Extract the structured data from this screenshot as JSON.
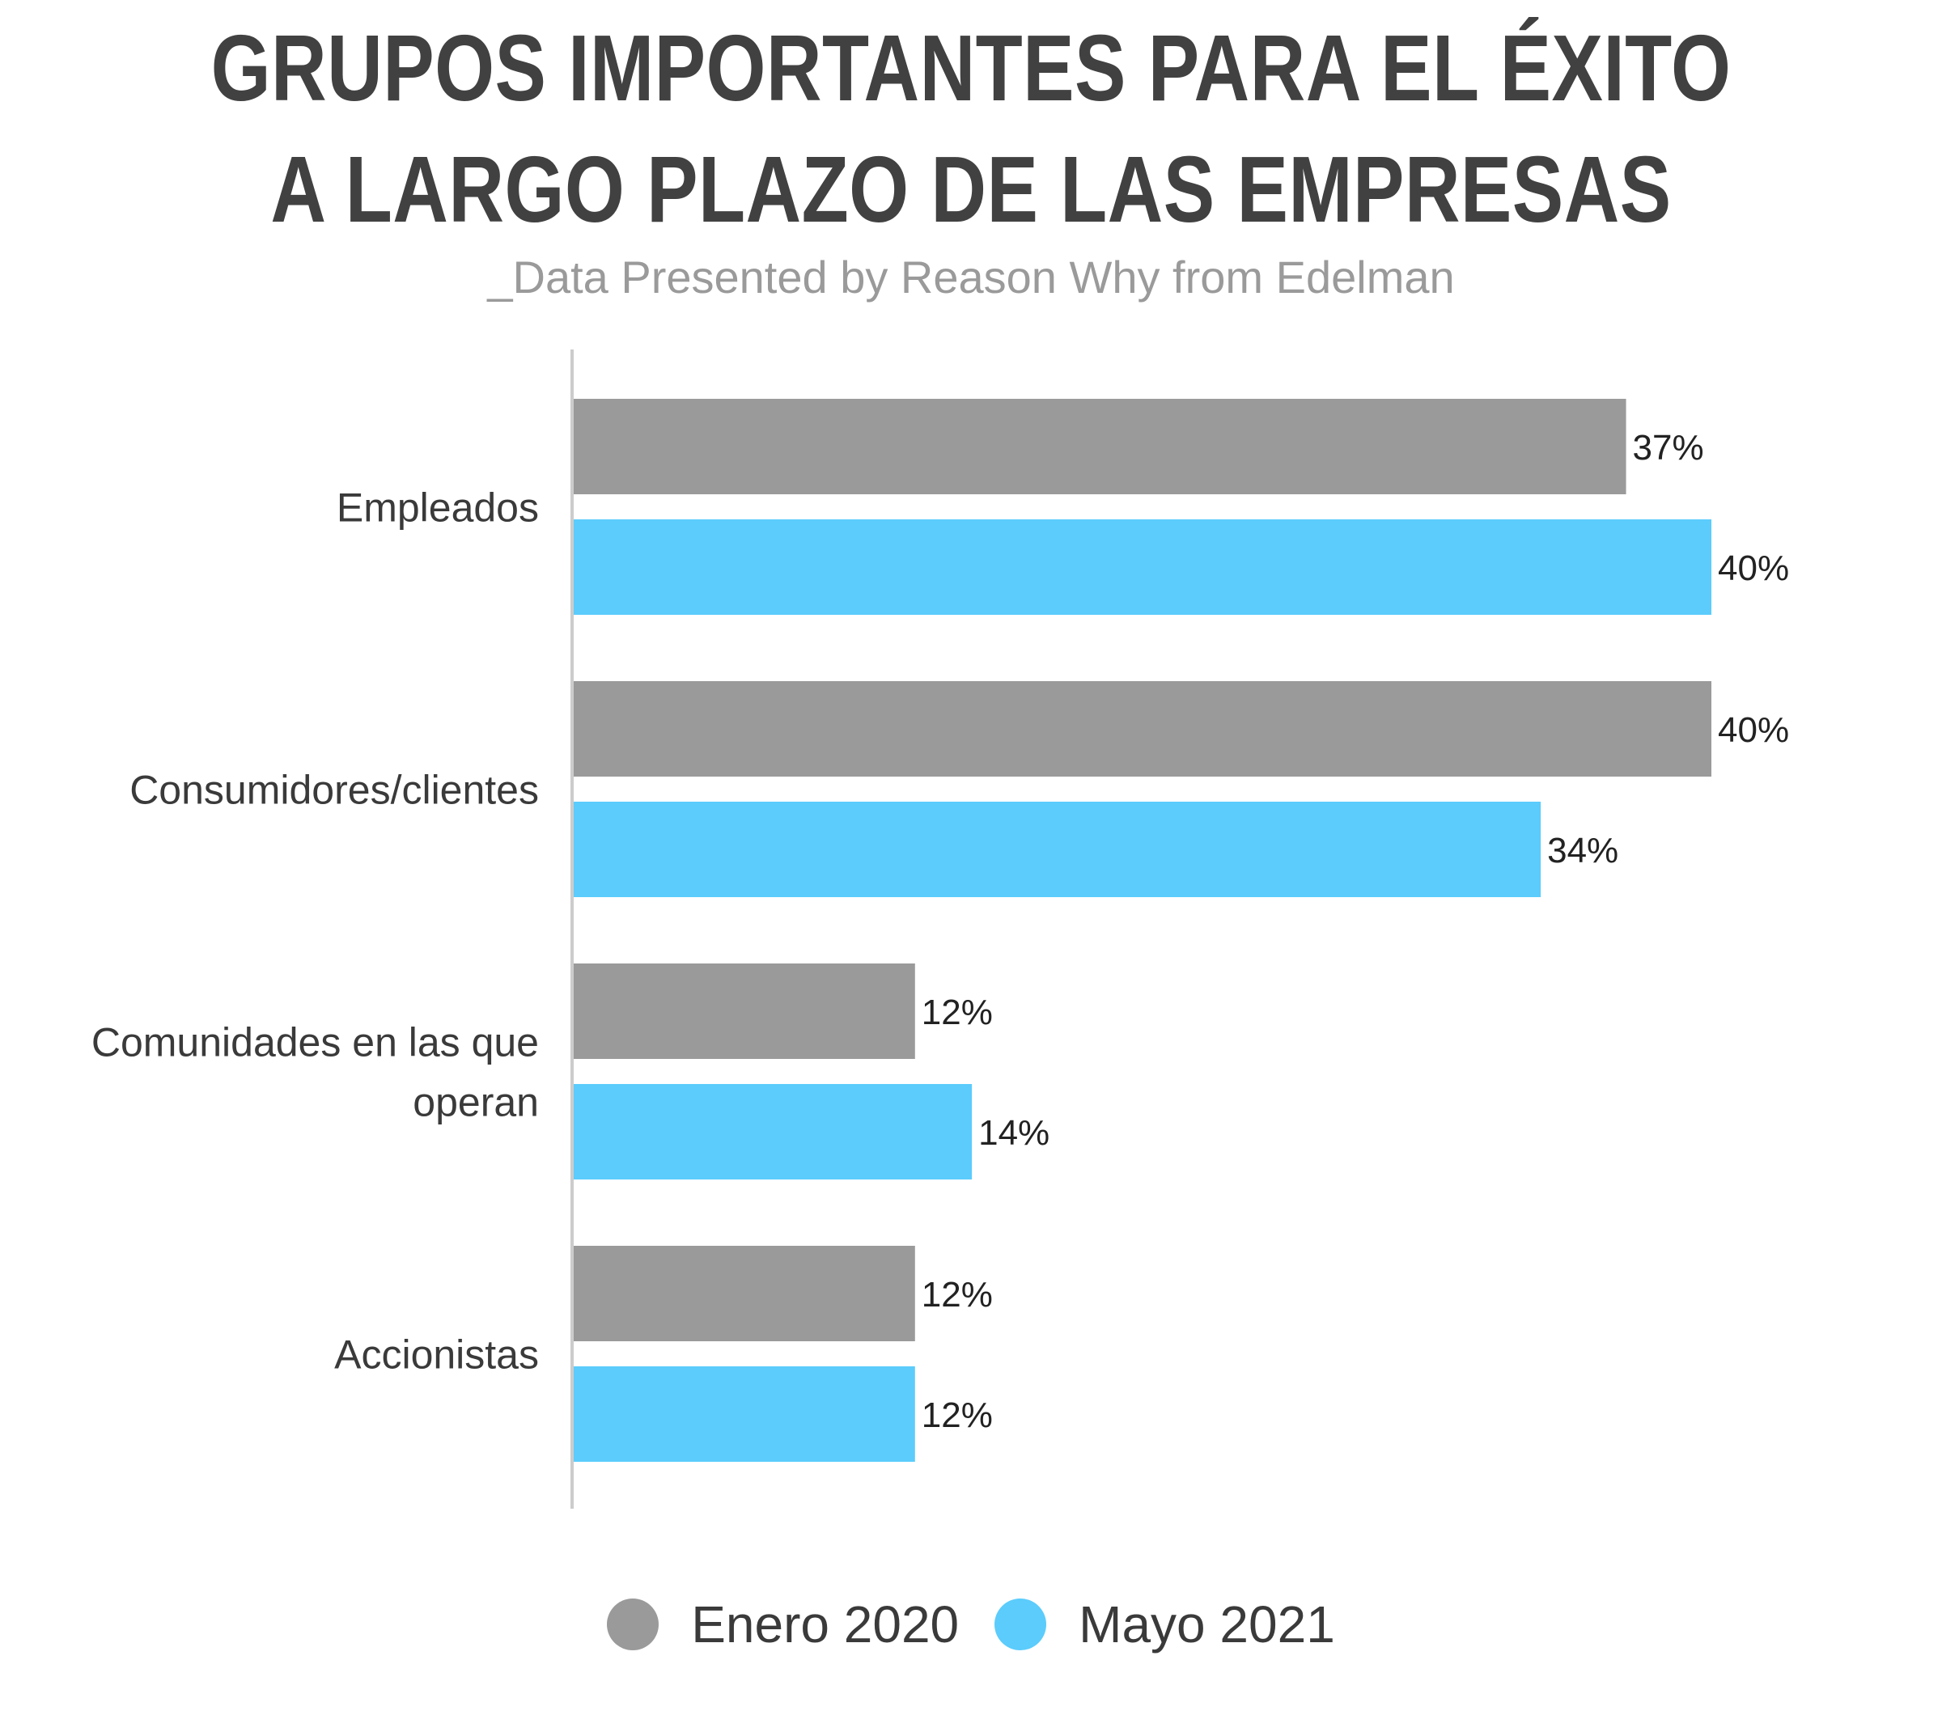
{
  "title_lines": [
    "GRUPOS IMPORTANTES PARA EL ÉXITO",
    "A LARGO PLAZO DE LAS EMPRESAS"
  ],
  "subtitle": "_Data Presented by Reason Why from Edelman",
  "colors": {
    "title": "#414141",
    "subtitle": "#9a9a9a",
    "axis": "#cccccc",
    "text": "#3a3a3a"
  },
  "chart_data": {
    "type": "bar",
    "orientation": "horizontal",
    "title": "GRUPOS IMPORTANTES PARA EL ÉXITO A LARGO PLAZO DE LAS EMPRESAS",
    "subtitle": "_Data Presented by Reason Why from Edelman",
    "categories": [
      [
        "Empleados"
      ],
      [
        "Consumidores/clientes"
      ],
      [
        "Comunidades en las que",
        "operan"
      ],
      [
        "Accionistas"
      ]
    ],
    "series": [
      {
        "name": "Enero 2020",
        "color": "#9a9a9a",
        "values": [
          37,
          40,
          12,
          12
        ],
        "labels": [
          "37%",
          "40%",
          "12%",
          "12%"
        ]
      },
      {
        "name": "Mayo 2021",
        "color": "#5bccfc",
        "values": [
          40,
          34,
          14,
          12
        ],
        "labels": [
          "40%",
          "34%",
          "14%",
          "12%"
        ]
      }
    ],
    "xlim": [
      0,
      40
    ],
    "grid": false,
    "legend_position": "bottom"
  }
}
